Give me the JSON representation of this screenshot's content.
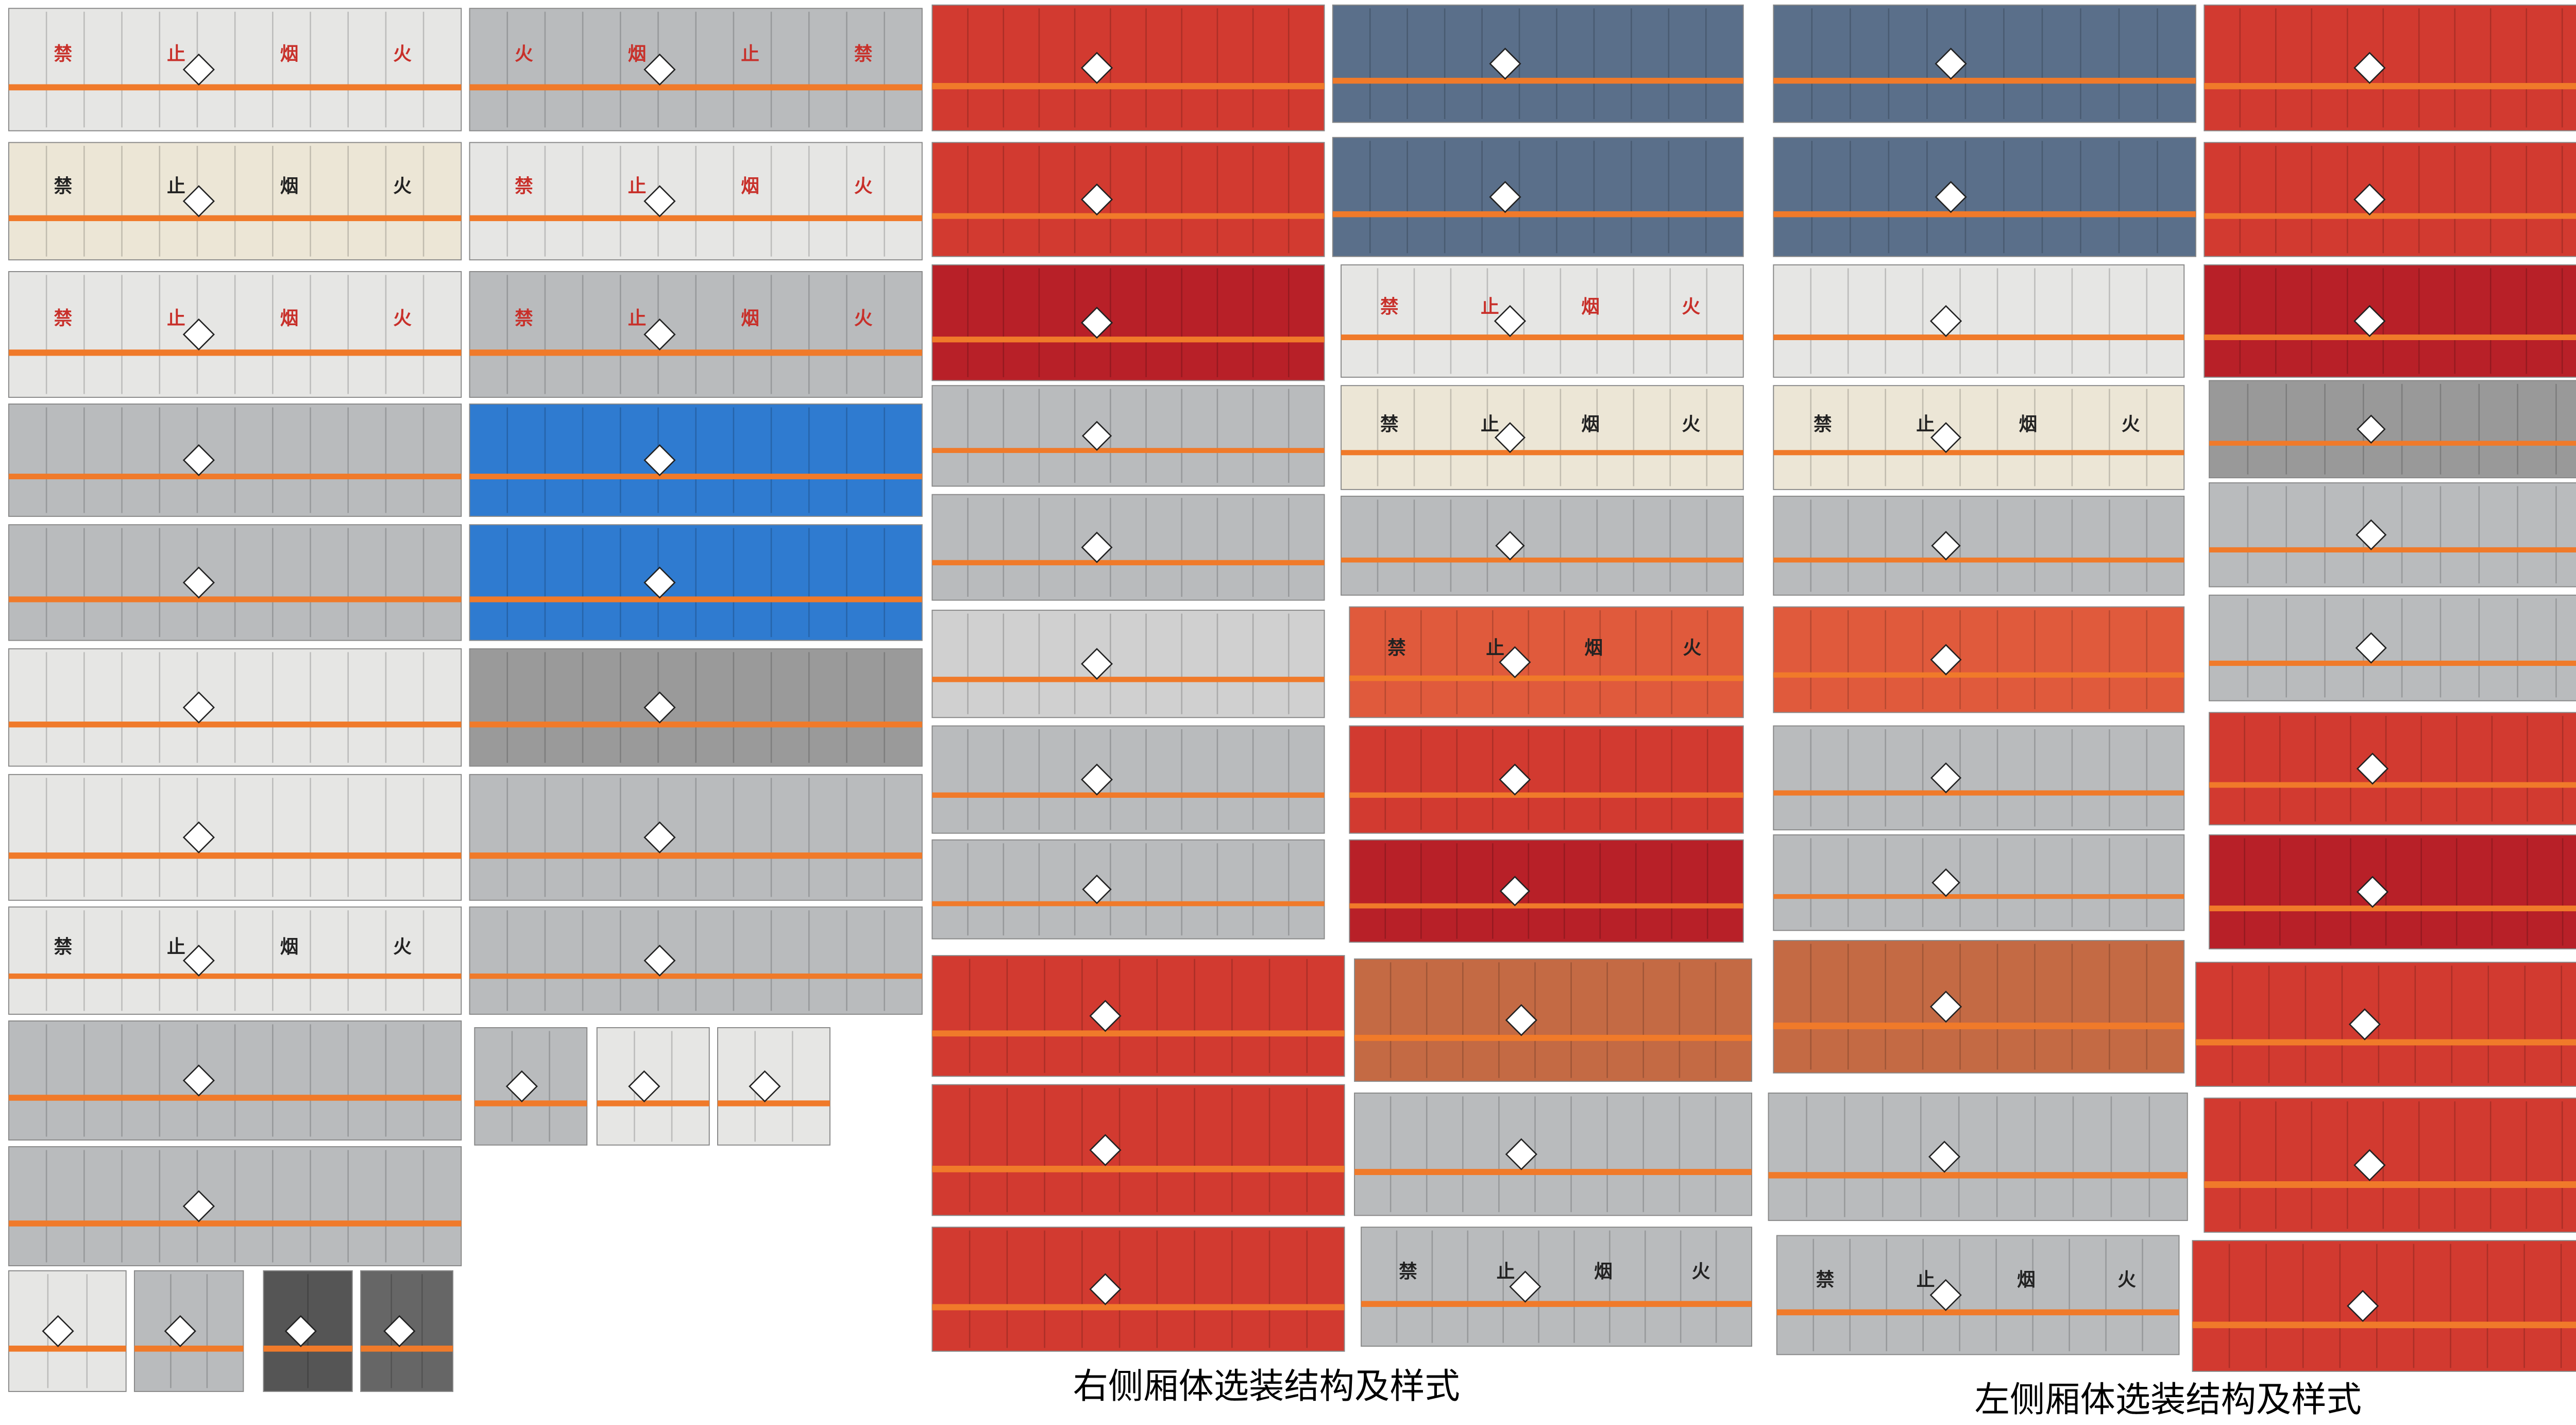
{
  "captions": {
    "right": "右侧厢体选装结构及样式",
    "left": "左侧厢体选装结构及样式"
  },
  "panel_text": [
    "禁",
    "止",
    "烟",
    "火"
  ]
}
